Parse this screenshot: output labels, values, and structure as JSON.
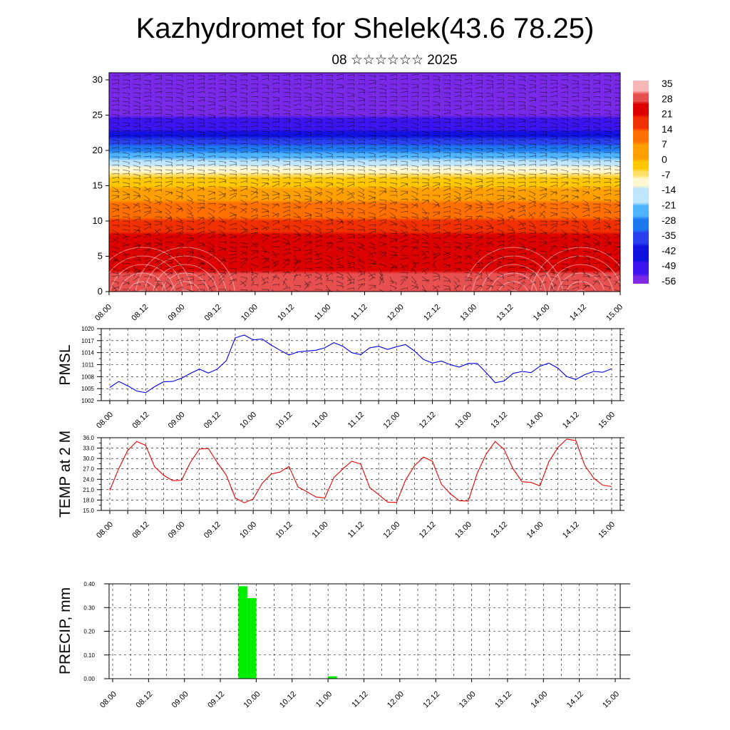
{
  "page": {
    "title": "Kazhydromet for Shelek(43.6 78.25)",
    "subtitle": "08 ☆☆☆☆☆☆ 2025"
  },
  "time_ticks": [
    "08.00",
    "08.12",
    "09.00",
    "09.12",
    "10.00",
    "10.12",
    "11.00",
    "11.12",
    "12.00",
    "12.12",
    "13.00",
    "13.12",
    "14.00",
    "14.12",
    "15.00"
  ],
  "chart_data": [
    {
      "type": "heatmap",
      "name": "cross_section",
      "x": "time_ticks",
      "ylim": [
        0,
        30
      ],
      "yticks": [
        0,
        5,
        10,
        15,
        20,
        25,
        30
      ],
      "colorbar_labels": [
        "35",
        "28",
        "21",
        "14",
        "7",
        "0",
        "-7",
        "-14",
        "-21",
        "-28",
        "-35",
        "-42",
        "-49",
        "-56"
      ],
      "colorbar_range": [
        -60,
        38
      ],
      "colors": {
        "hot": "#e60000",
        "warm": "#ff8c00",
        "neutral": "#fff2a0",
        "cool": "#4fb4ff",
        "cold": "#1010e0",
        "coldest": "#7a28e8"
      },
      "temperature_profile": [
        [
          0,
          30
        ],
        [
          4,
          27
        ],
        [
          8,
          22
        ],
        [
          11,
          12
        ],
        [
          14,
          4
        ],
        [
          16,
          -4
        ],
        [
          18,
          -14
        ],
        [
          20,
          -28
        ],
        [
          22,
          -44
        ],
        [
          24,
          -55
        ],
        [
          26,
          -58
        ],
        [
          30,
          -57
        ]
      ],
      "overlay": "wind barbs"
    },
    {
      "type": "line",
      "name": "pmsl",
      "ylabel": "PMSL",
      "ylim": [
        1002,
        1020
      ],
      "yticks": [
        "1002",
        "1005",
        "1008",
        "1011",
        "1014",
        "1017",
        "1020"
      ],
      "color": "#0000ee",
      "x_hours": [
        0,
        3,
        6,
        9,
        12,
        15,
        18,
        21,
        24,
        27,
        30,
        33,
        36,
        39,
        42,
        45,
        48,
        51,
        54,
        57,
        60,
        63,
        66,
        69,
        72,
        75,
        78,
        81,
        84,
        87,
        90,
        93,
        96,
        99,
        102,
        105,
        108,
        111,
        114,
        117,
        120,
        123,
        126,
        129,
        132,
        135,
        138,
        141,
        144,
        147,
        150,
        153,
        156,
        159,
        162,
        165,
        168
      ],
      "values": [
        1005.3,
        1006.8,
        1005.7,
        1004.4,
        1004.0,
        1005.5,
        1006.7,
        1006.8,
        1007.6,
        1008.8,
        1009.9,
        1008.9,
        1009.9,
        1012.0,
        1017.7,
        1018.4,
        1017.2,
        1017.4,
        1015.9,
        1014.6,
        1013.4,
        1014.2,
        1014.4,
        1014.6,
        1015.2,
        1016.5,
        1015.6,
        1014.0,
        1013.5,
        1015.2,
        1015.6,
        1014.8,
        1015.5,
        1016.0,
        1014.4,
        1012.3,
        1011.4,
        1011.9,
        1011.0,
        1010.4,
        1011.3,
        1011.3,
        1009.0,
        1006.5,
        1006.9,
        1008.8,
        1009.3,
        1009.0,
        1010.6,
        1011.4,
        1010.1,
        1008.0,
        1007.3,
        1008.5,
        1009.3,
        1009.1,
        1010.0
      ]
    },
    {
      "type": "line",
      "name": "temp2m",
      "ylabel": "TEMP at 2 M",
      "ylim": [
        15,
        36
      ],
      "yticks": [
        "15.0",
        "18.0",
        "21.0",
        "24.0",
        "27.0",
        "30.0",
        "33.0",
        "36.0"
      ],
      "color": "#ee0000",
      "x_hours": [
        0,
        3,
        6,
        9,
        12,
        15,
        18,
        21,
        24,
        27,
        30,
        33,
        36,
        39,
        42,
        45,
        48,
        51,
        54,
        57,
        60,
        63,
        66,
        69,
        72,
        75,
        78,
        81,
        84,
        87,
        90,
        93,
        96,
        99,
        102,
        105,
        108,
        111,
        114,
        117,
        120,
        123,
        126,
        129,
        132,
        135,
        138,
        141,
        144,
        147,
        150,
        153,
        156,
        159,
        162,
        165,
        168
      ],
      "values": [
        20.8,
        27.1,
        32.3,
        34.9,
        33.8,
        27.6,
        25.2,
        23.6,
        23.7,
        28.9,
        32.7,
        32.9,
        28.8,
        25.2,
        18.6,
        17.2,
        18.3,
        22.8,
        25.5,
        26.1,
        27.7,
        21.8,
        20.4,
        18.9,
        18.6,
        24.5,
        27.0,
        29.2,
        28.4,
        21.6,
        19.6,
        17.4,
        17.3,
        23.8,
        27.9,
        30.4,
        29.2,
        22.6,
        19.8,
        17.8,
        17.7,
        25.7,
        31.3,
        34.9,
        32.6,
        27.0,
        23.3,
        23.1,
        22.1,
        29.1,
        33.2,
        35.6,
        35.2,
        28.0,
        24.3,
        22.3,
        21.9
      ]
    },
    {
      "type": "bar",
      "name": "precip",
      "ylabel": "PRECIP, mm",
      "ylim": [
        0,
        0.4
      ],
      "yticks": [
        "0.00",
        "0.10",
        "0.20",
        "0.30",
        "0.40"
      ],
      "color": "#00ee00",
      "bars": [
        {
          "start_hour": 42,
          "end_hour": 45,
          "value": 0.39
        },
        {
          "start_hour": 45,
          "end_hour": 48,
          "value": 0.34
        },
        {
          "start_hour": 72,
          "end_hour": 75,
          "value": 0.01
        }
      ]
    }
  ]
}
